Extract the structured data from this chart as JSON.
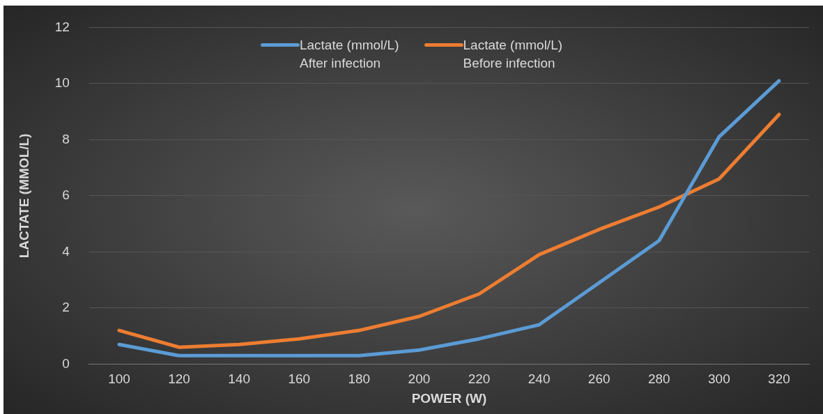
{
  "chart_data": {
    "type": "line",
    "xlabel": "POWER (W)",
    "ylabel": "LACTATE (MMOL/L)",
    "categories": [
      "100",
      "120",
      "140",
      "160",
      "180",
      "200",
      "220",
      "240",
      "260",
      "280",
      "300",
      "320"
    ],
    "series": [
      {
        "name": "Lactate (mmol/L)\nAfter infection",
        "color": "#5b9bd5",
        "values": [
          0.7,
          0.3,
          0.3,
          0.3,
          0.3,
          0.5,
          0.9,
          1.4,
          2.9,
          4.4,
          8.1,
          10.1
        ]
      },
      {
        "name": "Lactate (mmol/L)\nBefore infection",
        "color": "#ed7d31",
        "values": [
          1.2,
          0.6,
          0.7,
          0.9,
          1.2,
          1.7,
          2.5,
          3.9,
          4.8,
          5.6,
          6.6,
          8.9
        ]
      }
    ],
    "ylim": [
      0,
      12
    ],
    "yticks": [
      0,
      2,
      4,
      6,
      8,
      10,
      12
    ],
    "grid": "y",
    "legend": "top",
    "marker": "none",
    "line_style": "solid"
  }
}
